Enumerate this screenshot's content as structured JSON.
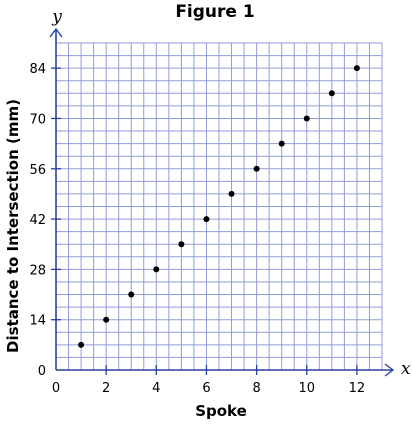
{
  "chart_data": {
    "type": "scatter",
    "title": "Figure 1",
    "xlabel": "Spoke",
    "ylabel": "Distance to Intersection (mm)",
    "x_var": "x",
    "y_var": "y",
    "xlim": [
      0,
      13
    ],
    "ylim": [
      0,
      91
    ],
    "x_ticks": [
      0,
      2,
      4,
      6,
      8,
      10,
      12
    ],
    "y_ticks": [
      0,
      14,
      28,
      42,
      56,
      70,
      84
    ],
    "x_grid_step": 0.5,
    "y_grid_step": 3.5,
    "grid": true,
    "colors": {
      "grid": "#8f9dd8",
      "axis": "#2a3f9e",
      "points": "#000000"
    },
    "points": [
      {
        "x": 1,
        "y": 7
      },
      {
        "x": 2,
        "y": 14
      },
      {
        "x": 3,
        "y": 21
      },
      {
        "x": 4,
        "y": 28
      },
      {
        "x": 5,
        "y": 35
      },
      {
        "x": 6,
        "y": 42
      },
      {
        "x": 7,
        "y": 49
      },
      {
        "x": 8,
        "y": 56
      },
      {
        "x": 9,
        "y": 63
      },
      {
        "x": 10,
        "y": 70
      },
      {
        "x": 11,
        "y": 77
      },
      {
        "x": 12,
        "y": 84
      }
    ]
  }
}
